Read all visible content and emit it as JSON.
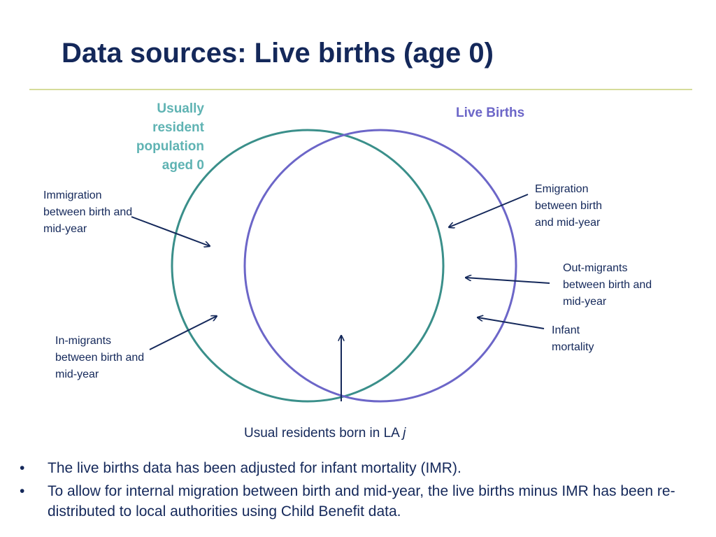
{
  "slide": {
    "title": "Data sources: Live births (age 0)"
  },
  "diagram": {
    "sets": {
      "usually_resident": {
        "label": "Usually resident population aged  0",
        "color": "#3a8f8a"
      },
      "live_births": {
        "label": "Live Births",
        "color": "#6c66c8"
      }
    },
    "flows": {
      "immigration": "Immigration between birth and mid-year",
      "emigration": "Emigration between birth and mid-year",
      "out_migrants": "Out-migrants between birth and mid-year",
      "infant_mortality": "Infant mortality",
      "in_migrants": "In-migrants between birth and mid-year"
    },
    "overlap_label": "Usual residents born in LA",
    "overlap_label_var": "j",
    "arrow_color": "#14285a"
  },
  "bullets": [
    {
      "marker": "•",
      "text": "The live births data has been adjusted for infant mortality (IMR)."
    },
    {
      "marker": "•",
      "text": "To allow for internal migration  between birth and mid-year, the live births minus IMR has been re-distributed to local authorities using Child Benefit data."
    }
  ]
}
